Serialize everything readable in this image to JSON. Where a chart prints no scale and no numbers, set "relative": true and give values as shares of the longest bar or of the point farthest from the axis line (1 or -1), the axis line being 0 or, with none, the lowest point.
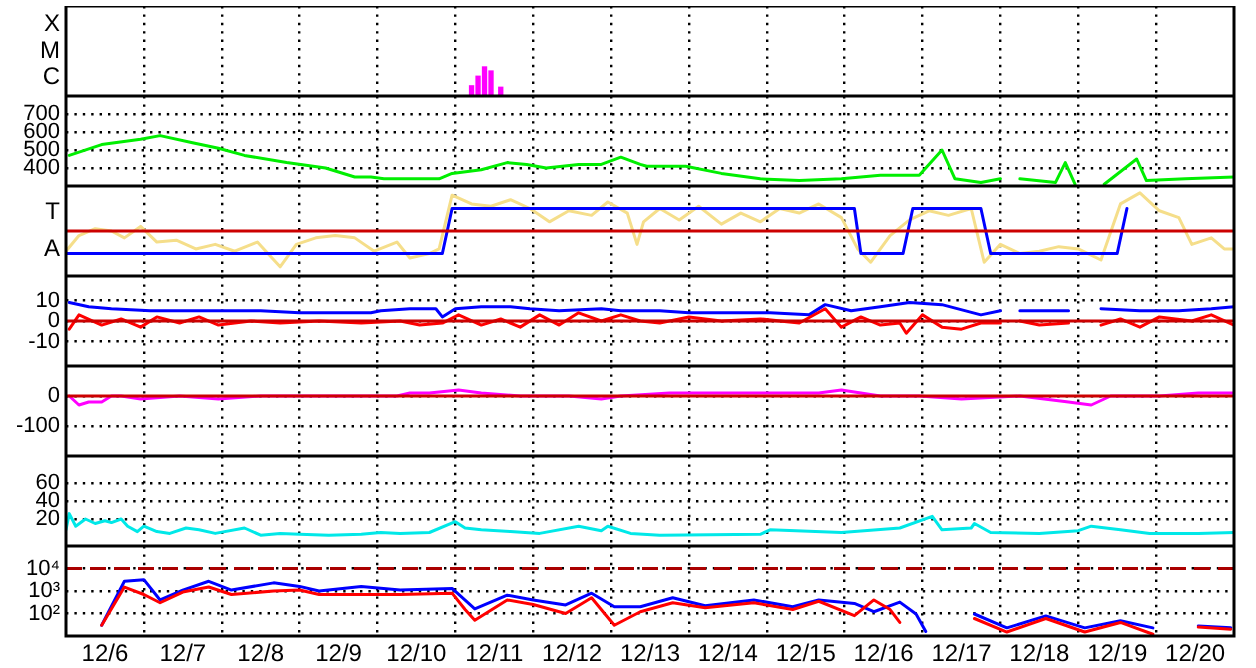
{
  "chart_data": [
    {
      "type": "bar",
      "relative": true,
      "annotations": [
        "X",
        "M",
        "C"
      ],
      "xlim": [
        "--12-06T00:00",
        "--12-21T00:00"
      ],
      "xticks": [
        {
          "value": "--12-07",
          "label": null
        },
        {
          "value": "--12-08",
          "label": null
        },
        {
          "value": "--12-09",
          "label": null
        },
        {
          "value": "--12-10",
          "label": null
        },
        {
          "value": "--12-11",
          "label": null
        },
        {
          "value": "--12-12",
          "label": null
        },
        {
          "value": "--12-13",
          "label": null
        },
        {
          "value": "--12-14",
          "label": null
        },
        {
          "value": "--12-15",
          "label": null
        },
        {
          "value": "--12-16",
          "label": null
        },
        {
          "value": "--12-17",
          "label": null
        },
        {
          "value": "--12-18",
          "label": null
        },
        {
          "value": "--12-19",
          "label": null
        },
        {
          "value": "--12-20",
          "label": null
        }
      ],
      "tick_labels": "y",
      "grid": "x",
      "series": [
        {
          "color": "#ff00ff",
          "x": [
            "--12-11T05:00",
            "--12-11T07:00",
            "--12-11T09:00",
            "--12-11T11:00",
            "--12-11T14:00"
          ],
          "values": [
            0.35,
            0.68,
            1,
            0.86,
            0.3
          ]
        }
      ]
    },
    {
      "type": "line",
      "ylim": [
        300,
        800
      ],
      "yticks": [
        400,
        500,
        600,
        700
      ],
      "xlim": [
        "--12-06T00:00",
        "--12-21T00:00"
      ],
      "xticks": [
        {
          "value": "--12-07",
          "label": null
        },
        {
          "value": "--12-08",
          "label": null
        },
        {
          "value": "--12-09",
          "label": null
        },
        {
          "value": "--12-10",
          "label": null
        },
        {
          "value": "--12-11",
          "label": null
        },
        {
          "value": "--12-12",
          "label": null
        },
        {
          "value": "--12-13",
          "label": null
        },
        {
          "value": "--12-14",
          "label": null
        },
        {
          "value": "--12-15",
          "label": null
        },
        {
          "value": "--12-16",
          "label": null
        },
        {
          "value": "--12-17",
          "label": null
        },
        {
          "value": "--12-18",
          "label": null
        },
        {
          "value": "--12-19",
          "label": null
        },
        {
          "value": "--12-20",
          "label": null
        }
      ],
      "tick_labels": "y",
      "grid": true,
      "series": [
        {
          "color": "#00ee00",
          "x": [
            "--12-06T01:00",
            "--12-06T11:00",
            "--12-06T23:00",
            "--12-07T05:00",
            "--12-07T15:00",
            "--12-07T23:00",
            "--12-08T07:00",
            "--12-08T20:00",
            "--12-09T08:00",
            "--12-09T17:00",
            "--12-09T22:00",
            "--12-10T02:00",
            "--12-10T11:00",
            "--12-10T19:00",
            "--12-10T23:00",
            "--12-11T08:00",
            "--12-11T16:00",
            "--12-11T22:00",
            "--12-12T04:00",
            "--12-12T14:00",
            "--12-12T21:00",
            "--12-13T03:00",
            "--12-13T09:00",
            "--12-13T11:00",
            "--12-13T23:00",
            "--12-14T10:00",
            "--12-14T22:00",
            "--12-15T10:00",
            "--12-15T23:00",
            "--12-16T11:00",
            "--12-16T23:00",
            "--12-17T06:00",
            "--12-17T10:00",
            "--12-17T18:00",
            "--12-18T00:00",
            "--12-18T03:00",
            "--12-18T06:00",
            "--12-18T17:00",
            "--12-18T20:00",
            "--12-18T23:00",
            "--12-19T04:00",
            "--12-19T08:00",
            "--12-19T18:00",
            "--12-19T21:00",
            "--12-20T09:00",
            "--12-21T00:00"
          ],
          "values": [
            470,
            530,
            560,
            580,
            540,
            510,
            470,
            430,
            400,
            350,
            350,
            340,
            340,
            340,
            370,
            390,
            430,
            420,
            400,
            420,
            420,
            460,
            420,
            410,
            410,
            370,
            340,
            330,
            340,
            360,
            360,
            500,
            340,
            320,
            340,
            null,
            340,
            320,
            430,
            310,
            null,
            310,
            450,
            330,
            340,
            350
          ]
        }
      ]
    },
    {
      "type": "line",
      "relative": true,
      "annotations": [
        "T",
        "A"
      ],
      "xlim": [
        "--12-06T00:00",
        "--12-21T00:00"
      ],
      "xticks": [
        {
          "value": "--12-07",
          "label": null
        },
        {
          "value": "--12-08",
          "label": null
        },
        {
          "value": "--12-09",
          "label": null
        },
        {
          "value": "--12-10",
          "label": null
        },
        {
          "value": "--12-11",
          "label": null
        },
        {
          "value": "--12-12",
          "label": null
        },
        {
          "value": "--12-13",
          "label": null
        },
        {
          "value": "--12-14",
          "label": null
        },
        {
          "value": "--12-15",
          "label": null
        },
        {
          "value": "--12-16",
          "label": null
        },
        {
          "value": "--12-17",
          "label": null
        },
        {
          "value": "--12-18",
          "label": null
        },
        {
          "value": "--12-19",
          "label": null
        },
        {
          "value": "--12-20",
          "label": null
        }
      ],
      "tick_labels": "y",
      "grid": "x",
      "ref_lines": [
        {
          "axis": "y",
          "value": 0,
          "color": "#cc0000"
        }
      ],
      "series": [
        {
          "color": "#0000ff",
          "x": [
            "--12-06T00:00",
            "--12-10T20:00",
            "--12-10T23:00",
            "--12-16T03:00",
            "--12-16T05:00",
            "--12-16T18:00",
            "--12-16T21:00",
            "--12-17T18:00",
            "--12-17T21:00",
            "--12-19T12:00",
            "--12-19T15:00"
          ],
          "values": [
            -0.59,
            -0.59,
            0.59,
            0.59,
            -0.59,
            -0.59,
            0.59,
            0.59,
            -0.59,
            -0.59,
            0.59
          ]
        },
        {
          "color": "#f5de8a",
          "x": [
            "--12-06T00:00",
            "--12-06T04:00",
            "--12-06T09:00",
            "--12-06T14:00",
            "--12-06T18:00",
            "--12-06T23:00",
            "--12-07T04:00",
            "--12-07T10:00",
            "--12-07T16:00",
            "--12-07T22:00",
            "--12-08T04:00",
            "--12-08T11:00",
            "--12-08T18:00",
            "--12-08T23:00",
            "--12-09T05:00",
            "--12-09T11:00",
            "--12-09T17:00",
            "--12-09T23:00",
            "--12-10T06:00",
            "--12-10T10:00",
            "--12-10T16:00",
            "--12-10T19:00",
            "--12-10T23:00",
            "--12-11T05:00",
            "--12-11T11:00",
            "--12-11T17:00",
            "--12-11T23:00",
            "--12-12T05:00",
            "--12-12T11:00",
            "--12-12T18:00",
            "--12-12T23:00",
            "--12-13T05:00",
            "--12-13T08:00",
            "--12-13T10:00",
            "--12-13T15:00",
            "--12-13T21:00",
            "--12-14T03:00",
            "--12-14T10:00",
            "--12-14T16:00",
            "--12-14T22:00",
            "--12-15T04:00",
            "--12-15T10:00",
            "--12-15T16:00",
            "--12-15T23:00",
            "--12-16T04:00",
            "--12-16T08:00",
            "--12-16T14:00",
            "--12-16T20:00",
            "--12-17T02:00",
            "--12-17T08:00",
            "--12-17T15:00",
            "--12-17T19:00",
            "--12-18T00:00",
            "--12-18T06:00",
            "--12-18T12:00",
            "--12-18T18:00",
            "--12-19T00:00",
            "--12-19T07:00",
            "--12-19T13:00",
            "--12-19T19:00",
            "--12-20T01:00",
            "--12-20T07:00",
            "--12-20T11:00",
            "--12-20T17:00",
            "--12-20T21:00",
            "--12-21T00:00"
          ],
          "values": [
            -0.53,
            -0.12,
            0.06,
            0,
            -0.18,
            0.12,
            -0.29,
            -0.24,
            -0.47,
            -0.35,
            -0.53,
            -0.29,
            -0.94,
            -0.35,
            -0.18,
            -0.12,
            -0.18,
            -0.53,
            -0.29,
            -0.71,
            -0.59,
            -0.47,
            0.94,
            0.71,
            0.65,
            0.82,
            0.59,
            0.24,
            0.53,
            0.41,
            0.76,
            0.47,
            -0.35,
            0.24,
            0.59,
            0.29,
            0.65,
            0.18,
            0.47,
            0.24,
            0.59,
            0.47,
            0.71,
            0.35,
            -0.47,
            -0.82,
            -0.12,
            0.29,
            0.53,
            0.41,
            0.59,
            -0.82,
            -0.35,
            -0.59,
            -0.53,
            -0.41,
            -0.47,
            -0.76,
            0.71,
            1,
            0.53,
            0.35,
            -0.35,
            -0.18,
            -0.47,
            -0.47
          ]
        }
      ]
    },
    {
      "type": "line",
      "ylim": [
        -22,
        22
      ],
      "yticks": [
        -10,
        0,
        10
      ],
      "xlim": [
        "--12-06T00:00",
        "--12-21T00:00"
      ],
      "xticks": [
        {
          "value": "--12-07",
          "label": null
        },
        {
          "value": "--12-08",
          "label": null
        },
        {
          "value": "--12-09",
          "label": null
        },
        {
          "value": "--12-10",
          "label": null
        },
        {
          "value": "--12-11",
          "label": null
        },
        {
          "value": "--12-12",
          "label": null
        },
        {
          "value": "--12-13",
          "label": null
        },
        {
          "value": "--12-14",
          "label": null
        },
        {
          "value": "--12-15",
          "label": null
        },
        {
          "value": "--12-16",
          "label": null
        },
        {
          "value": "--12-17",
          "label": null
        },
        {
          "value": "--12-18",
          "label": null
        },
        {
          "value": "--12-19",
          "label": null
        },
        {
          "value": "--12-20",
          "label": null
        }
      ],
      "tick_labels": "y",
      "grid": true,
      "ref_lines": [
        {
          "axis": "y",
          "value": 0,
          "color": "#cc0000"
        }
      ],
      "series": [
        {
          "color": "#ff0000",
          "x": [
            "--12-06T01:00",
            "--12-06T04:00",
            "--12-06T11:00",
            "--12-06T17:00",
            "--12-06T23:00",
            "--12-07T04:00",
            "--12-07T11:00",
            "--12-07T17:00",
            "--12-07T23:00",
            "--12-08T09:00",
            "--12-08T18:00",
            "--12-09T06:00",
            "--12-09T19:00",
            "--12-10T07:00",
            "--12-10T13:00",
            "--12-10T20:00",
            "--12-11T01:00",
            "--12-11T08:00",
            "--12-11T14:00",
            "--12-11T20:00",
            "--12-12T02:00",
            "--12-12T08:00",
            "--12-12T14:00",
            "--12-12T21:00",
            "--12-13T03:00",
            "--12-13T09:00",
            "--12-13T15:00",
            "--12-14T00:00",
            "--12-14T10:00",
            "--12-14T22:00",
            "--12-15T10:00",
            "--12-15T18:00",
            "--12-15T23:00",
            "--12-16T05:00",
            "--12-16T11:00",
            "--12-16T17:00",
            "--12-16T19:00",
            "--12-17T00:00",
            "--12-17T06:00",
            "--12-17T12:00",
            "--12-17T18:00",
            "--12-18T00:00",
            "--12-18T03:00",
            "--12-18T06:00",
            "--12-18T12:00",
            "--12-18T21:00",
            "--12-18T23:00",
            "--12-19T07:00",
            "--12-19T13:00",
            "--12-19T19:00",
            "--12-20T01:00",
            "--12-20T11:00",
            "--12-20T17:00",
            "--12-21T00:00"
          ],
          "values": [
            -4,
            3,
            -2,
            1,
            -3,
            2,
            -1,
            2,
            -2,
            0,
            -1,
            0,
            -1,
            0,
            -2,
            -1,
            3,
            -2,
            1,
            -3,
            3,
            -2,
            4,
            0,
            3,
            0,
            -1,
            2,
            0,
            1,
            -1,
            6,
            -3,
            2,
            -2,
            -1,
            -6,
            3,
            -3,
            -4,
            -1,
            -1,
            null,
            0,
            -2,
            -1,
            null,
            -2,
            1,
            -3,
            2,
            0,
            3,
            -2
          ]
        },
        {
          "color": "#0000ff",
          "x": [
            "--12-06T01:00",
            "--12-06T07:00",
            "--12-06T14:00",
            "--12-07T02:00",
            "--12-07T17:00",
            "--12-08T12:00",
            "--12-09T00:00",
            "--12-09T12:00",
            "--12-09T22:00",
            "--12-10T01:00",
            "--12-10T10:00",
            "--12-10T18:00",
            "--12-10T20:00",
            "--12-11T00:00",
            "--12-11T08:00",
            "--12-11T17:00",
            "--12-11T23:00",
            "--12-12T08:00",
            "--12-12T21:00",
            "--12-13T03:00",
            "--12-13T15:00",
            "--12-14T00:00",
            "--12-14T10:00",
            "--12-15T01:00",
            "--12-15T13:00",
            "--12-15T18:00",
            "--12-16T02:00",
            "--12-16T11:00",
            "--12-16T20:00",
            "--12-17T06:00",
            "--12-17T18:00",
            "--12-18T00:00",
            "--12-18T03:00",
            "--12-18T06:00",
            "--12-18T21:00",
            "--12-18T23:00",
            "--12-19T07:00",
            "--12-19T19:00",
            "--12-20T07:00",
            "--12-20T17:00",
            "--12-21T00:00"
          ],
          "values": [
            9,
            7,
            6,
            5,
            5,
            5,
            4,
            4,
            4,
            5,
            6,
            6,
            2,
            6,
            7,
            7,
            6,
            5,
            6,
            5,
            5,
            4,
            4,
            4,
            3,
            8,
            5,
            7,
            9,
            8,
            3,
            5,
            null,
            5,
            5,
            null,
            6,
            5,
            5,
            6,
            7
          ]
        }
      ]
    },
    {
      "type": "line",
      "ylim": [
        -200,
        100
      ],
      "yticks": [
        -100,
        0
      ],
      "xlim": [
        "--12-06T00:00",
        "--12-21T00:00"
      ],
      "xticks": [
        {
          "value": "--12-07",
          "label": null
        },
        {
          "value": "--12-08",
          "label": null
        },
        {
          "value": "--12-09",
          "label": null
        },
        {
          "value": "--12-10",
          "label": null
        },
        {
          "value": "--12-11",
          "label": null
        },
        {
          "value": "--12-12",
          "label": null
        },
        {
          "value": "--12-13",
          "label": null
        },
        {
          "value": "--12-14",
          "label": null
        },
        {
          "value": "--12-15",
          "label": null
        },
        {
          "value": "--12-16",
          "label": null
        },
        {
          "value": "--12-17",
          "label": null
        },
        {
          "value": "--12-18",
          "label": null
        },
        {
          "value": "--12-19",
          "label": null
        },
        {
          "value": "--12-20",
          "label": null
        }
      ],
      "tick_labels": "y",
      "grid": true,
      "ref_lines": [
        {
          "axis": "y",
          "value": 0,
          "color": "#cc0000"
        }
      ],
      "series": [
        {
          "color": "#ff00ff",
          "x": [
            "--12-06T01:00",
            "--12-06T04:00",
            "--12-06T07:00",
            "--12-06T11:00",
            "--12-06T14:00",
            "--12-06T17:00",
            "--12-06T23:00",
            "--12-07T11:00",
            "--12-07T23:00",
            "--12-08T12:00",
            "--12-09T06:00",
            "--12-10T01:00",
            "--12-10T06:00",
            "--12-10T10:00",
            "--12-10T16:00",
            "--12-11T01:00",
            "--12-11T08:00",
            "--12-11T20:00",
            "--12-12T11:00",
            "--12-12T21:00",
            "--12-13T03:00",
            "--12-13T18:00",
            "--12-14T10:00",
            "--12-15T04:00",
            "--12-15T16:00",
            "--12-15T23:00",
            "--12-16T11:00",
            "--12-16T23:00",
            "--12-17T12:00",
            "--12-18T06:00",
            "--12-18T21:00",
            "--12-19T04:00",
            "--12-19T10:00",
            "--12-20T01:00",
            "--12-20T13:00",
            "--12-21T00:00"
          ],
          "values": [
            0,
            -30,
            -20,
            -20,
            0,
            0,
            -10,
            0,
            -10,
            0,
            0,
            0,
            0,
            10,
            10,
            20,
            10,
            0,
            0,
            -10,
            0,
            10,
            10,
            10,
            10,
            20,
            0,
            0,
            -10,
            0,
            -20,
            -30,
            0,
            0,
            10,
            10
          ]
        }
      ]
    },
    {
      "type": "line",
      "ylim": [
        -10,
        90
      ],
      "yticks": [
        20,
        40,
        60
      ],
      "xlim": [
        "--12-06T00:00",
        "--12-21T00:00"
      ],
      "xticks": [
        {
          "value": "--12-07",
          "label": null
        },
        {
          "value": "--12-08",
          "label": null
        },
        {
          "value": "--12-09",
          "label": null
        },
        {
          "value": "--12-10",
          "label": null
        },
        {
          "value": "--12-11",
          "label": null
        },
        {
          "value": "--12-12",
          "label": null
        },
        {
          "value": "--12-13",
          "label": null
        },
        {
          "value": "--12-14",
          "label": null
        },
        {
          "value": "--12-15",
          "label": null
        },
        {
          "value": "--12-16",
          "label": null
        },
        {
          "value": "--12-17",
          "label": null
        },
        {
          "value": "--12-18",
          "label": null
        },
        {
          "value": "--12-19",
          "label": null
        },
        {
          "value": "--12-20",
          "label": null
        }
      ],
      "tick_labels": "y",
      "grid": true,
      "series": [
        {
          "color": "#00e8e8",
          "x": [
            "--12-06T00:00",
            "--12-06T01:00",
            "--12-06T03:00",
            "--12-06T06:00",
            "--12-06T09:00",
            "--12-06T12:00",
            "--12-06T14:00",
            "--12-06T17:00",
            "--12-06T19:00",
            "--12-06T22:00",
            "--12-07T00:00",
            "--12-07T04:00",
            "--12-07T08:00",
            "--12-07T13:00",
            "--12-07T17:00",
            "--12-07T22:00",
            "--12-08T07:00",
            "--12-08T12:00",
            "--12-08T18:00",
            "--12-09T00:00",
            "--12-09T09:00",
            "--12-09T19:00",
            "--12-10T01:00",
            "--12-10T07:00",
            "--12-10T16:00",
            "--12-11T00:00",
            "--12-11T03:00",
            "--12-11T08:00",
            "--12-11T17:00",
            "--12-12T02:00",
            "--12-12T14:00",
            "--12-12T21:00",
            "--12-12T23:00",
            "--12-13T06:00",
            "--12-13T15:00",
            "--12-14T22:00",
            "--12-15T01:00",
            "--12-15T23:00",
            "--12-16T17:00",
            "--12-17T03:00",
            "--12-17T06:00",
            "--12-17T15:00",
            "--12-17T16:00",
            "--12-17T21:00",
            "--12-18T12:00",
            "--12-19T00:00",
            "--12-19T04:00",
            "--12-19T13:00",
            "--12-19T22:00",
            "--12-20T13:00",
            "--12-21T00:00"
          ],
          "values": [
            8,
            26,
            12,
            20,
            15,
            18,
            16,
            20,
            12,
            6,
            12,
            6,
            4,
            10,
            8,
            4,
            10,
            2,
            4,
            3,
            2,
            3,
            5,
            4,
            5,
            17,
            10,
            8,
            6,
            4,
            12,
            7,
            12,
            4,
            2,
            3,
            8,
            5,
            10,
            23,
            8,
            10,
            15,
            5,
            4,
            7,
            12,
            8,
            4,
            4,
            5
          ]
        }
      ]
    },
    {
      "type": "line",
      "log": true,
      "ylim": [
        10,
        100000
      ],
      "yticks": [
        {
          "value": 100,
          "label": "10²"
        },
        {
          "value": 1000,
          "label": "10³"
        },
        {
          "value": 10000,
          "label": "10⁴"
        }
      ],
      "xlim": [
        "--12-06T00:00",
        "--12-21T00:00"
      ],
      "xticks": [
        {
          "value": "--12-06T12:00",
          "label": "12/6"
        },
        {
          "value": "--12-07",
          "label": null
        },
        {
          "value": "--12-07T12:00",
          "label": "12/7"
        },
        {
          "value": "--12-08",
          "label": null
        },
        {
          "value": "--12-08T12:00",
          "label": "12/8"
        },
        {
          "value": "--12-09",
          "label": null
        },
        {
          "value": "--12-09T12:00",
          "label": "12/9"
        },
        {
          "value": "--12-10",
          "label": null
        },
        {
          "value": "--12-10T12:00",
          "label": "12/10"
        },
        {
          "value": "--12-11",
          "label": null
        },
        {
          "value": "--12-11T12:00",
          "label": "12/11"
        },
        {
          "value": "--12-12",
          "label": null
        },
        {
          "value": "--12-12T12:00",
          "label": "12/12"
        },
        {
          "value": "--12-13",
          "label": null
        },
        {
          "value": "--12-13T12:00",
          "label": "12/13"
        },
        {
          "value": "--12-14",
          "label": null
        },
        {
          "value": "--12-14T12:00",
          "label": "12/14"
        },
        {
          "value": "--12-15",
          "label": null
        },
        {
          "value": "--12-15T12:00",
          "label": "12/15"
        },
        {
          "value": "--12-16",
          "label": null
        },
        {
          "value": "--12-16T12:00",
          "label": "12/16"
        },
        {
          "value": "--12-17",
          "label": null
        },
        {
          "value": "--12-17T12:00",
          "label": "12/17"
        },
        {
          "value": "--12-18",
          "label": null
        },
        {
          "value": "--12-18T12:00",
          "label": "12/18"
        },
        {
          "value": "--12-19",
          "label": null
        },
        {
          "value": "--12-19T12:00",
          "label": "12/19"
        },
        {
          "value": "--12-20",
          "label": null
        },
        {
          "value": "--12-20T12:00",
          "label": "12/20"
        }
      ],
      "grid": true,
      "ref_lines": [
        {
          "axis": "y",
          "value": 10000,
          "color": "#aa0000",
          "line_style": "dashed"
        }
      ],
      "series": [
        {
          "color": "#ff0000",
          "x": [
            "--12-06T11:00",
            "--12-06T18:00",
            "--12-07T00:00",
            "--12-07T05:00",
            "--12-07T12:00",
            "--12-07T20:00",
            "--12-08T03:00",
            "--12-08T16:00",
            "--12-09T00:00",
            "--12-09T06:00",
            "--12-09T19:00",
            "--12-10T07:00",
            "--12-10T23:00",
            "--12-11T03:00",
            "--12-11T06:00",
            "--12-11T16:00",
            "--12-12T00:00",
            "--12-12T10:00",
            "--12-12T18:00",
            "--12-13T01:00",
            "--12-13T09:00",
            "--12-13T19:00",
            "--12-14T05:00",
            "--12-14T20:00",
            "--12-15T08:00",
            "--12-15T16:00",
            "--12-16T03:00",
            "--12-16T09:00",
            "--12-16T14:00",
            "--12-16T17:00",
            "--12-16T20:00",
            "--12-17T16:00",
            "--12-18T02:00",
            "--12-18T14:00",
            "--12-19T02:00",
            "--12-19T13:00",
            "--12-19T23:00",
            "--12-20T07:00",
            "--12-20T13:00",
            "--12-20T23:00"
          ],
          "values": [
            30,
            1500,
            700,
            300,
            900,
            1500,
            700,
            1000,
            1100,
            700,
            700,
            700,
            800,
            150,
            50,
            400,
            250,
            100,
            500,
            30,
            120,
            300,
            180,
            300,
            150,
            350,
            80,
            400,
            150,
            40,
            null,
            60,
            15,
            60,
            15,
            40,
            12,
            null,
            25,
            20
          ]
        },
        {
          "color": "#0000ff",
          "x": [
            "--12-06T11:00",
            "--12-06T18:00",
            "--12-07T00:00",
            "--12-07T05:00",
            "--12-07T12:00",
            "--12-07T20:00",
            "--12-08T03:00",
            "--12-08T16:00",
            "--12-09T00:00",
            "--12-09T06:00",
            "--12-09T19:00",
            "--12-10T07:00",
            "--12-10T23:00",
            "--12-11T06:00",
            "--12-11T16:00",
            "--12-12T00:00",
            "--12-12T10:00",
            "--12-12T18:00",
            "--12-13T01:00",
            "--12-13T09:00",
            "--12-13T19:00",
            "--12-14T05:00",
            "--12-14T20:00",
            "--12-15T08:00",
            "--12-15T16:00",
            "--12-16T03:00",
            "--12-16T09:00",
            "--12-16T17:00",
            "--12-16T22:00",
            "--12-17T01:00",
            "--12-17T04:00",
            "--12-17T16:00",
            "--12-18T02:00",
            "--12-18T14:00",
            "--12-19T02:00",
            "--12-19T13:00",
            "--12-19T23:00",
            "--12-20T06:00",
            "--12-20T13:00",
            "--12-20T23:00"
          ],
          "values": [
            30,
            2700,
            3200,
            400,
            1100,
            2700,
            1100,
            2300,
            1600,
            1000,
            1600,
            1100,
            1300,
            160,
            650,
            400,
            240,
            800,
            200,
            200,
            500,
            220,
            400,
            200,
            400,
            280,
            120,
            320,
            95,
            16,
            null,
            95,
            23,
            78,
            23,
            48,
            23,
            null,
            28,
            23
          ]
        }
      ]
    }
  ]
}
